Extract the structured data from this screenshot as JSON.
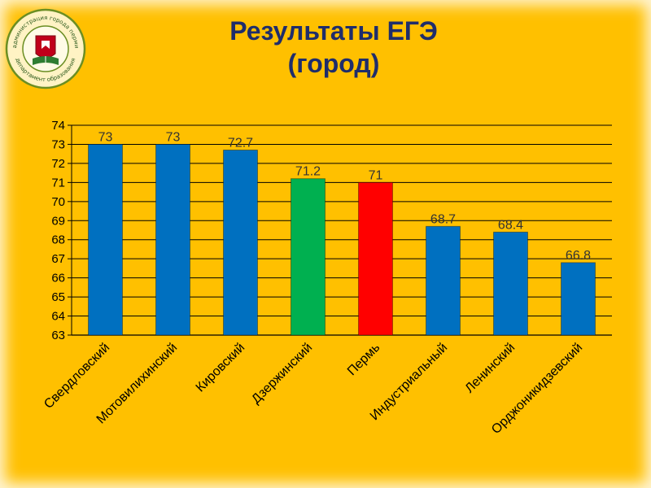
{
  "slide": {
    "title_line1": "Результаты ЕГЭ",
    "title_line2": "(город)",
    "logo": {
      "icon": "city-education-department-emblem",
      "ring_text": "администрация города перми департамент образования"
    }
  },
  "colors": {
    "background": "#ffc000",
    "title": "#1f2d6b",
    "bar_default": "#0070c0",
    "bar_green": "#00b050",
    "bar_red": "#ff0000"
  },
  "chart_data": {
    "type": "bar",
    "title": "Результаты ЕГЭ (город)",
    "xlabel": "",
    "ylabel": "",
    "categories": [
      "Свердловский",
      "Мотовилихинский",
      "Кировский",
      "Дзержинский",
      "Пермь",
      "Индустриальный",
      "Ленинский",
      "Орджоникидзевский"
    ],
    "values": [
      73,
      73,
      72.7,
      71.2,
      71,
      68.7,
      68.4,
      66.8
    ],
    "data_labels": [
      "73",
      "73",
      "72.7",
      "71.2",
      "71",
      "68.7",
      "68.4",
      "66.8"
    ],
    "bar_colors": [
      "#0070c0",
      "#0070c0",
      "#0070c0",
      "#00b050",
      "#ff0000",
      "#0070c0",
      "#0070c0",
      "#0070c0"
    ],
    "ylim": [
      63,
      74
    ],
    "yticks": [
      63,
      64,
      65,
      66,
      67,
      68,
      69,
      70,
      71,
      72,
      73,
      74
    ],
    "grid": true,
    "legend": "none"
  }
}
